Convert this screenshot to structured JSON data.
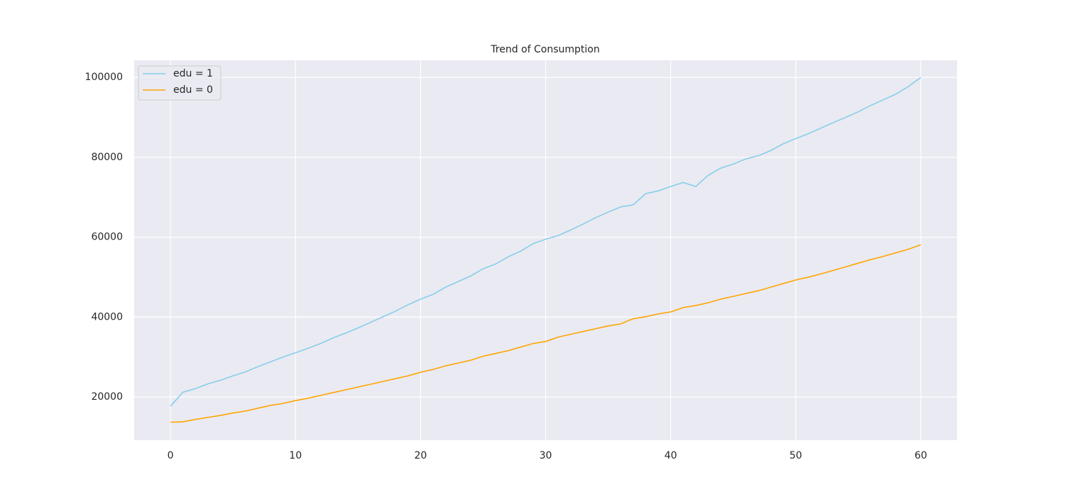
{
  "chart_data": {
    "type": "line",
    "title": "Trend of Consumption",
    "x": [
      0,
      1,
      2,
      3,
      4,
      5,
      6,
      7,
      8,
      9,
      10,
      11,
      12,
      13,
      14,
      15,
      16,
      17,
      18,
      19,
      20,
      21,
      22,
      23,
      24,
      25,
      26,
      27,
      28,
      29,
      30,
      31,
      32,
      33,
      34,
      35,
      36,
      37,
      38,
      39,
      40,
      41,
      42,
      43,
      44,
      45,
      46,
      47,
      48,
      49,
      50,
      51,
      52,
      53,
      54,
      55,
      56,
      57,
      58,
      59,
      60
    ],
    "series": [
      {
        "name": "edu = 1",
        "color": "#87ceeb",
        "values": [
          17700,
          21200,
          22100,
          23300,
          24200,
          25300,
          26300,
          27600,
          28800,
          30000,
          31100,
          32200,
          33400,
          34800,
          36000,
          37300,
          38700,
          40100,
          41500,
          43100,
          44500,
          45700,
          47500,
          48900,
          50300,
          52100,
          53300,
          55100,
          56500,
          58400,
          59500,
          60400,
          61800,
          63300,
          64900,
          66300,
          67600,
          68100,
          70900,
          71600,
          72700,
          73700,
          72700,
          75500,
          77300,
          78300,
          79600,
          80400,
          81700,
          83400,
          84700,
          85900,
          87300,
          88700,
          90000,
          91400,
          93000,
          94400,
          95800,
          97700,
          100000
        ]
      },
      {
        "name": "edu = 0",
        "color": "#ffa500",
        "values": [
          13700,
          13800,
          14400,
          14900,
          15400,
          16000,
          16500,
          17200,
          17900,
          18400,
          19100,
          19700,
          20400,
          21100,
          21800,
          22500,
          23200,
          23900,
          24600,
          25300,
          26200,
          26900,
          27800,
          28500,
          29200,
          30200,
          30900,
          31600,
          32500,
          33400,
          33900,
          35000,
          35700,
          36400,
          37100,
          37800,
          38300,
          39600,
          40100,
          40800,
          41300,
          42400,
          42900,
          43600,
          44500,
          45200,
          45900,
          46600,
          47500,
          48400,
          49300,
          50000,
          50800,
          51700,
          52600,
          53500,
          54400,
          55200,
          56100,
          57000,
          58100
        ]
      }
    ],
    "xlim": [
      -2.9,
      62.9
    ],
    "xticks": [
      0,
      10,
      20,
      30,
      40,
      50,
      60
    ],
    "ylim": [
      9200,
      104300
    ],
    "yticks": [
      20000,
      40000,
      60000,
      80000,
      100000
    ],
    "grid": true,
    "legend": "upper left"
  }
}
